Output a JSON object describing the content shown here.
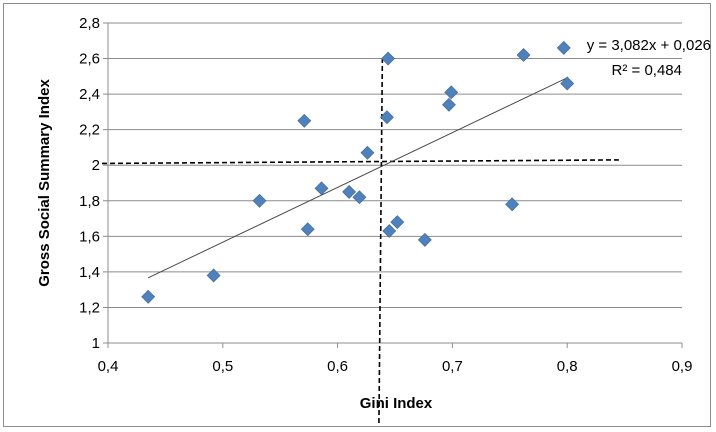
{
  "chart_data": {
    "type": "scatter",
    "xlabel": "Gini Index",
    "ylabel": "Gross Social Summary Index",
    "xlim": [
      0.4,
      0.9
    ],
    "ylim": [
      1,
      2.8
    ],
    "x_ticks": [
      "0,4",
      "0,5",
      "0,6",
      "0,7",
      "0,8",
      "0,9"
    ],
    "y_ticks": [
      "1",
      "1,2",
      "1,4",
      "1,6",
      "1,8",
      "2",
      "2,2",
      "2,4",
      "2,6",
      "2,8"
    ],
    "grid": "horizontal",
    "marker_color": "#4f81bd",
    "points": [
      {
        "x": 0.435,
        "y": 1.26
      },
      {
        "x": 0.492,
        "y": 1.38
      },
      {
        "x": 0.532,
        "y": 1.8
      },
      {
        "x": 0.571,
        "y": 2.25
      },
      {
        "x": 0.574,
        "y": 1.64
      },
      {
        "x": 0.586,
        "y": 1.87
      },
      {
        "x": 0.61,
        "y": 1.85
      },
      {
        "x": 0.619,
        "y": 1.82
      },
      {
        "x": 0.626,
        "y": 2.07
      },
      {
        "x": 0.644,
        "y": 2.6
      },
      {
        "x": 0.643,
        "y": 2.27
      },
      {
        "x": 0.645,
        "y": 1.63
      },
      {
        "x": 0.652,
        "y": 1.68
      },
      {
        "x": 0.676,
        "y": 1.58
      },
      {
        "x": 0.697,
        "y": 2.34
      },
      {
        "x": 0.699,
        "y": 2.41
      },
      {
        "x": 0.752,
        "y": 1.78
      },
      {
        "x": 0.762,
        "y": 2.62
      },
      {
        "x": 0.797,
        "y": 2.66
      },
      {
        "x": 0.8,
        "y": 2.46
      }
    ],
    "trendline": {
      "equation": "y = 3,082x + 0,026",
      "r_squared": "R² = 0,484",
      "x_start": 0.435,
      "x_end": 0.8,
      "slope": 3.082,
      "intercept": 0.026
    },
    "reference_lines": {
      "horizontal": {
        "y_start": 2.01,
        "y_end": 2.03,
        "x_start": 0.4,
        "x_end": 0.845
      },
      "vertical": {
        "x_start": 0.636,
        "x_end": 0.639,
        "y_start": 1,
        "y_end": 2.6
      }
    }
  }
}
